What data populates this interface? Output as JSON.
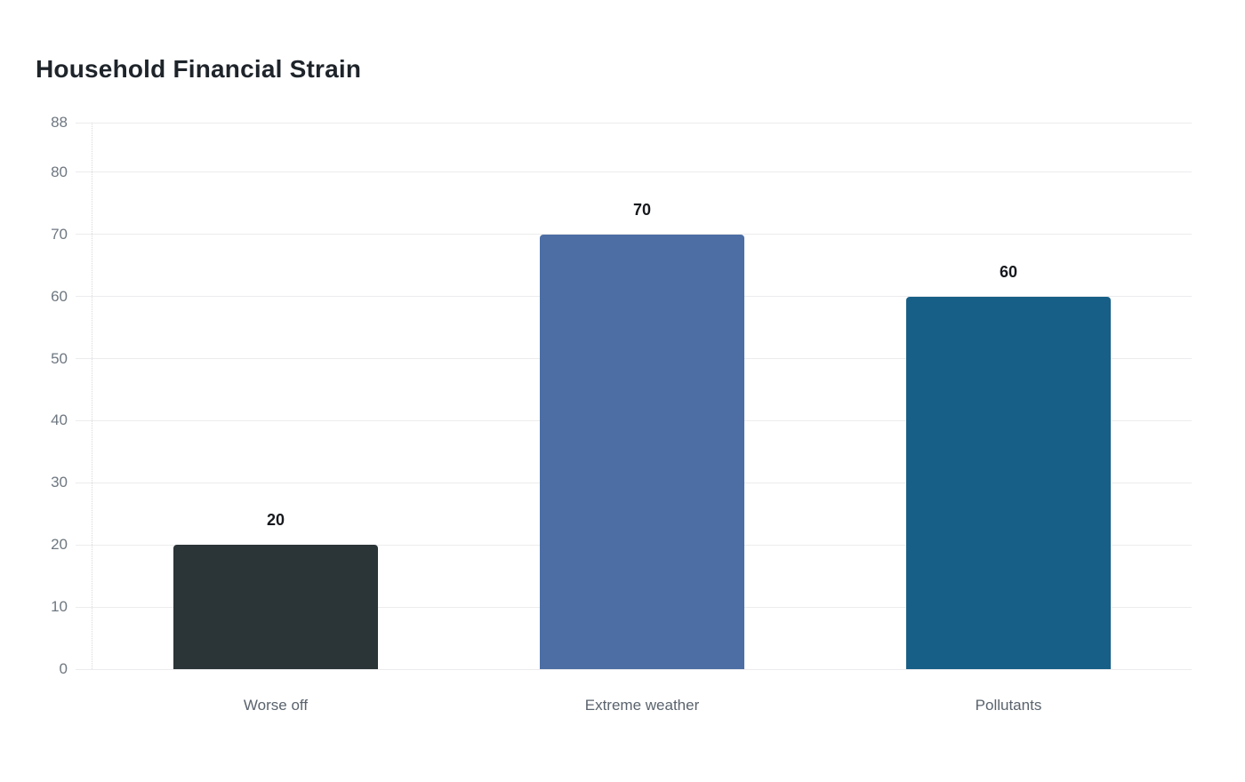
{
  "header": {
    "title": "Household Financial Strain"
  },
  "colors": {
    "background": "#ffffff",
    "title": "#1e242a",
    "gridline": "#ececee",
    "axis_line": "#d6d9dc",
    "y_tick_label": "#6e7780",
    "category_label": "#5a636d",
    "value_label": "#16191d"
  },
  "chart_data": {
    "type": "bar",
    "title": "Household Financial Strain",
    "categories": [
      "Worse off",
      "Extreme weather",
      "Pollutants"
    ],
    "values": [
      20,
      70,
      60
    ],
    "value_labels": [
      "20",
      "70",
      "60"
    ],
    "bar_colors": [
      "#2b3436",
      "#4c6ea4",
      "#175f87"
    ],
    "yticks": [
      0,
      10,
      20,
      30,
      40,
      50,
      60,
      70,
      80,
      88
    ],
    "ylim": [
      0,
      88
    ],
    "xlabel": "",
    "ylabel": "",
    "grid": true,
    "legend": "none"
  }
}
